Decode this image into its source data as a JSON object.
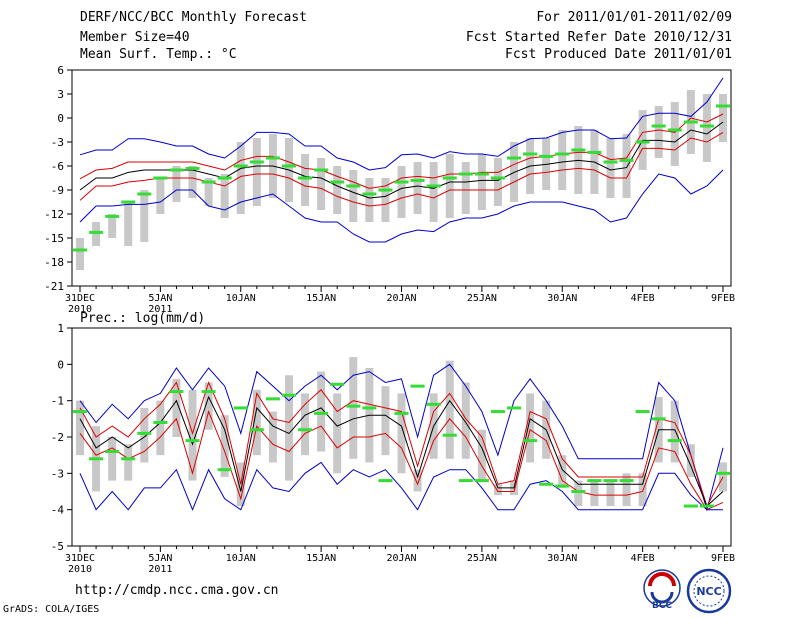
{
  "header": {
    "title": "DERF/NCC/BCC Monthly Forecast",
    "member": "Member Size=40",
    "variable": "Mean Surf. Temp.: °C",
    "period": "For 2011/01/01-2011/02/09",
    "started": "Fcst Started Refer Date 2010/12/31",
    "produced": "Fcst Produced Date 2011/01/01"
  },
  "footer": {
    "url": "http://cmdp.ncc.cma.gov.cn",
    "grads": "GrADS: COLA/IGES",
    "logo_bcc_text": "BCC",
    "logo_ncc_text": "NCC"
  },
  "colors": {
    "spread": "#0000cc",
    "member": "#dd0000",
    "mean": "#000000",
    "box": "#c8c8c8",
    "obs": "#33dd33"
  },
  "chart_data": [
    {
      "type": "line",
      "title": "Mean Surf. Temp.: °C",
      "ylabel": "°C",
      "ylim": [
        -21,
        6
      ],
      "yticks": [
        6,
        3,
        0,
        -3,
        -6,
        -9,
        -12,
        -15,
        -18,
        -21
      ],
      "x_start": 0,
      "x_tick_labels": [
        {
          "x": 0,
          "label": "31DEC",
          "sub": "2010"
        },
        {
          "x": 5,
          "label": "5JAN",
          "sub": "2011"
        },
        {
          "x": 10,
          "label": "10JAN",
          "sub": ""
        },
        {
          "x": 15,
          "label": "15JAN",
          "sub": ""
        },
        {
          "x": 20,
          "label": "20JAN",
          "sub": ""
        },
        {
          "x": 25,
          "label": "25JAN",
          "sub": ""
        },
        {
          "x": 30,
          "label": "30JAN",
          "sub": ""
        },
        {
          "x": 35,
          "label": "4FEB",
          "sub": ""
        },
        {
          "x": 40,
          "label": "9FEB",
          "sub": ""
        }
      ],
      "series": [
        {
          "name": "max",
          "role": "spread",
          "values": [
            -4.6,
            -4.0,
            -4.0,
            -2.6,
            -2.6,
            -3.0,
            -3.5,
            -3.5,
            -4.5,
            -5.0,
            -3.5,
            -1.8,
            -1.8,
            -2.0,
            -3.5,
            -3.5,
            -5.0,
            -5.5,
            -6.5,
            -6.2,
            -4.6,
            -4.5,
            -5.0,
            -4.2,
            -4.5,
            -4.5,
            -4.8,
            -3.5,
            -2.6,
            -2.5,
            -1.8,
            -1.5,
            -1.5,
            -2.6,
            -2.5,
            0.2,
            0.6,
            0.6,
            0.2,
            2.0,
            5.0
          ]
        },
        {
          "name": "upper",
          "role": "member",
          "values": [
            -7.6,
            -6.5,
            -6.3,
            -5.5,
            -5.5,
            -5.5,
            -5.5,
            -5.5,
            -6.0,
            -6.5,
            -5.3,
            -4.8,
            -4.8,
            -5.5,
            -6.3,
            -6.5,
            -7.3,
            -8.0,
            -8.8,
            -8.5,
            -7.5,
            -7.3,
            -7.5,
            -7.0,
            -7.0,
            -6.8,
            -6.8,
            -5.8,
            -5.0,
            -4.8,
            -4.5,
            -4.3,
            -4.3,
            -5.2,
            -5.0,
            -1.8,
            -1.5,
            -1.8,
            0.0,
            -0.5,
            0.5
          ]
        },
        {
          "name": "mean",
          "role": "mean",
          "values": [
            -9.0,
            -7.5,
            -7.5,
            -6.8,
            -6.5,
            -6.5,
            -6.5,
            -6.5,
            -7.0,
            -7.5,
            -6.3,
            -6.0,
            -6.0,
            -6.5,
            -7.3,
            -7.5,
            -8.5,
            -9.3,
            -10.0,
            -9.8,
            -8.8,
            -8.5,
            -8.8,
            -8.0,
            -8.0,
            -7.8,
            -7.8,
            -6.8,
            -6.0,
            -5.8,
            -5.5,
            -5.3,
            -5.5,
            -6.5,
            -6.2,
            -2.8,
            -2.8,
            -3.0,
            -1.5,
            -2.0,
            -0.5
          ]
        },
        {
          "name": "lower",
          "role": "member",
          "values": [
            -10.3,
            -8.5,
            -8.5,
            -8.0,
            -7.8,
            -7.5,
            -7.5,
            -7.5,
            -8.0,
            -8.5,
            -7.3,
            -7.0,
            -7.0,
            -7.5,
            -8.5,
            -8.8,
            -9.8,
            -10.5,
            -11.0,
            -10.8,
            -10.0,
            -9.5,
            -10.0,
            -9.0,
            -9.0,
            -9.0,
            -9.0,
            -8.0,
            -7.0,
            -6.8,
            -6.5,
            -6.3,
            -6.5,
            -7.5,
            -7.5,
            -3.8,
            -3.8,
            -4.0,
            -2.5,
            -3.0,
            -1.8
          ]
        },
        {
          "name": "min",
          "role": "spread",
          "values": [
            -13.0,
            -11.0,
            -11.0,
            -10.8,
            -10.8,
            -10.5,
            -9.0,
            -9.0,
            -11.0,
            -11.5,
            -10.5,
            -10.0,
            -9.5,
            -11.0,
            -12.5,
            -13.0,
            -13.0,
            -14.5,
            -15.5,
            -15.5,
            -14.5,
            -14.0,
            -14.2,
            -13.0,
            -12.5,
            -12.5,
            -12.0,
            -11.0,
            -10.5,
            -10.5,
            -10.5,
            -11.0,
            -11.5,
            -13.0,
            -12.5,
            -9.5,
            -7.0,
            -7.5,
            -9.5,
            -8.5,
            -6.5
          ]
        },
        {
          "name": "box_top",
          "role": "box",
          "values": [
            -15.0,
            -13.0,
            -12.0,
            -10.5,
            -9.0,
            -7.5,
            -6.0,
            -6.0,
            -7.5,
            -7.0,
            -3.0,
            -2.5,
            -2.0,
            -2.5,
            -4.5,
            -5.0,
            -6.0,
            -6.5,
            -7.5,
            -7.5,
            -6.0,
            -5.5,
            -5.5,
            -4.5,
            -5.5,
            -4.5,
            -5.0,
            -3.0,
            -2.5,
            -2.5,
            -1.5,
            -1.0,
            -1.5,
            -2.5,
            -2.0,
            1.0,
            1.5,
            2.0,
            3.5,
            3.0,
            3.0
          ]
        },
        {
          "name": "box_bottom",
          "role": "box",
          "values": [
            -19.0,
            -16.0,
            -15.0,
            -16.0,
            -15.5,
            -12.0,
            -10.5,
            -10.0,
            -11.0,
            -12.5,
            -12.0,
            -11.0,
            -10.0,
            -10.5,
            -11.0,
            -11.5,
            -12.0,
            -13.0,
            -13.0,
            -13.0,
            -12.5,
            -12.0,
            -13.0,
            -12.5,
            -12.0,
            -11.5,
            -11.0,
            -10.5,
            -9.5,
            -9.0,
            -9.0,
            -9.5,
            -9.5,
            -10.0,
            -10.0,
            -6.5,
            -5.0,
            -6.0,
            -4.5,
            -5.5,
            -3.0
          ]
        },
        {
          "name": "observed",
          "role": "obs",
          "values": [
            -16.5,
            -14.3,
            -12.3,
            -10.5,
            -9.5,
            -7.5,
            -6.5,
            -6.3,
            -8.0,
            -7.5,
            -6.0,
            -5.5,
            -5.0,
            -6.0,
            -7.5,
            -6.5,
            -8.0,
            -8.5,
            -9.5,
            -9.0,
            -8.0,
            -7.8,
            -8.5,
            -7.5,
            -7.0,
            -7.0,
            -7.5,
            -5.0,
            -4.5,
            -4.8,
            -4.5,
            -4.0,
            -4.3,
            -5.5,
            -5.3,
            -3.0,
            -1.0,
            -1.5,
            -0.5,
            -1.0,
            1.5
          ]
        }
      ]
    },
    {
      "type": "line",
      "title": "Prec.: log(mm/d)",
      "ylabel": "log(mm/d)",
      "ylim": [
        -5,
        1
      ],
      "yticks": [
        1,
        0,
        -1,
        -2,
        -3,
        -4,
        -5
      ],
      "x_start": 0,
      "x_tick_labels": [
        {
          "x": 0,
          "label": "31DEC",
          "sub": "2010"
        },
        {
          "x": 5,
          "label": "5JAN",
          "sub": "2011"
        },
        {
          "x": 10,
          "label": "10JAN",
          "sub": ""
        },
        {
          "x": 15,
          "label": "15JAN",
          "sub": ""
        },
        {
          "x": 20,
          "label": "20JAN",
          "sub": ""
        },
        {
          "x": 25,
          "label": "25JAN",
          "sub": ""
        },
        {
          "x": 30,
          "label": "30JAN",
          "sub": ""
        },
        {
          "x": 35,
          "label": "4FEB",
          "sub": ""
        },
        {
          "x": 40,
          "label": "9FEB",
          "sub": ""
        }
      ],
      "series": [
        {
          "name": "max",
          "role": "spread",
          "values": [
            -1.0,
            -1.6,
            -1.1,
            -1.5,
            -1.0,
            -0.8,
            -0.1,
            -0.7,
            -0.1,
            -0.6,
            -1.9,
            -0.2,
            -0.6,
            -1.0,
            -0.6,
            -0.3,
            -0.7,
            -0.3,
            -0.2,
            -0.5,
            -0.4,
            -2.0,
            -0.3,
            -0.0,
            -0.6,
            -1.3,
            -2.5,
            -1.0,
            -0.4,
            -1.0,
            -1.7,
            -2.6,
            -2.6,
            -2.6,
            -2.6,
            -2.6,
            -0.5,
            -1.0,
            -2.5,
            -4.0,
            -2.3
          ]
        },
        {
          "name": "upper",
          "role": "member",
          "values": [
            -1.2,
            -2.0,
            -1.7,
            -2.0,
            -1.5,
            -1.1,
            -0.5,
            -1.9,
            -0.5,
            -1.5,
            -3.3,
            -0.8,
            -1.5,
            -1.6,
            -1.1,
            -0.7,
            -1.3,
            -1.0,
            -1.1,
            -1.2,
            -1.3,
            -2.8,
            -1.3,
            -0.8,
            -1.5,
            -2.0,
            -3.3,
            -3.2,
            -1.3,
            -1.5,
            -2.6,
            -3.1,
            -3.1,
            -3.1,
            -3.1,
            -3.1,
            -1.5,
            -1.6,
            -2.5,
            -3.9,
            -3.1
          ]
        },
        {
          "name": "mean",
          "role": "mean",
          "values": [
            -1.5,
            -2.3,
            -2.0,
            -2.3,
            -2.0,
            -1.6,
            -1.0,
            -2.2,
            -0.9,
            -1.8,
            -3.5,
            -1.2,
            -1.7,
            -1.9,
            -1.4,
            -1.2,
            -1.7,
            -1.5,
            -1.4,
            -1.4,
            -1.7,
            -3.1,
            -1.7,
            -1.0,
            -1.6,
            -2.3,
            -3.4,
            -3.4,
            -1.5,
            -1.8,
            -2.9,
            -3.3,
            -3.3,
            -3.3,
            -3.3,
            -3.3,
            -1.8,
            -1.8,
            -2.8,
            -3.9,
            -3.5
          ]
        },
        {
          "name": "lower",
          "role": "member",
          "values": [
            -1.9,
            -2.5,
            -2.3,
            -2.6,
            -2.4,
            -2.0,
            -1.5,
            -3.0,
            -1.3,
            -2.4,
            -3.7,
            -1.7,
            -2.2,
            -2.4,
            -1.9,
            -1.7,
            -2.3,
            -2.0,
            -2.0,
            -1.9,
            -2.3,
            -3.3,
            -2.1,
            -1.5,
            -2.0,
            -2.8,
            -3.5,
            -3.5,
            -1.8,
            -2.1,
            -3.2,
            -3.5,
            -3.6,
            -3.6,
            -3.6,
            -3.5,
            -2.3,
            -2.4,
            -3.3,
            -4.0,
            -3.8
          ]
        },
        {
          "name": "min",
          "role": "spread",
          "values": [
            -3.0,
            -4.0,
            -3.5,
            -4.0,
            -3.4,
            -3.4,
            -2.9,
            -4.0,
            -2.9,
            -3.7,
            -4.0,
            -2.9,
            -3.4,
            -3.5,
            -3.0,
            -2.7,
            -3.3,
            -2.9,
            -3.1,
            -2.9,
            -3.4,
            -4.0,
            -3.1,
            -2.9,
            -2.9,
            -3.4,
            -4.0,
            -4.0,
            -3.3,
            -3.2,
            -3.5,
            -4.0,
            -4.0,
            -4.0,
            -4.0,
            -4.0,
            -3.0,
            -3.0,
            -3.6,
            -4.0,
            -4.0
          ]
        },
        {
          "name": "box_top",
          "role": "box",
          "values": [
            -1.0,
            -1.7,
            -2.0,
            -2.2,
            -1.2,
            -1.0,
            -0.4,
            -0.7,
            -0.5,
            -1.4,
            -2.7,
            -0.7,
            -1.3,
            -0.3,
            -0.8,
            -0.2,
            -0.8,
            0.2,
            -0.1,
            -0.6,
            -0.8,
            -2.9,
            -0.8,
            0.1,
            -0.5,
            -1.8,
            -3.3,
            -3.2,
            -0.8,
            -1.0,
            -2.5,
            -3.2,
            -3.2,
            -3.2,
            -3.0,
            -3.0,
            -0.9,
            -1.0,
            -2.2,
            -3.9,
            -2.7
          ]
        },
        {
          "name": "box_bottom",
          "role": "box",
          "values": [
            -2.5,
            -3.5,
            -3.2,
            -3.2,
            -2.7,
            -2.5,
            -2.0,
            -3.2,
            -1.8,
            -3.1,
            -3.9,
            -2.5,
            -2.7,
            -3.2,
            -2.5,
            -2.4,
            -3.0,
            -2.6,
            -2.7,
            -2.5,
            -3.0,
            -3.5,
            -2.6,
            -2.6,
            -2.6,
            -3.2,
            -3.6,
            -3.6,
            -2.7,
            -2.6,
            -3.4,
            -3.9,
            -3.9,
            -3.9,
            -3.9,
            -3.9,
            -2.7,
            -2.7,
            -3.1,
            -3.9,
            -3.5
          ]
        },
        {
          "name": "observed",
          "role": "obs",
          "values": [
            -1.3,
            -2.6,
            -2.4,
            -2.6,
            -1.9,
            -1.6,
            -0.75,
            -2.1,
            -0.75,
            -2.9,
            -1.2,
            -1.8,
            -0.95,
            -0.85,
            -1.8,
            -1.35,
            -0.55,
            -1.15,
            -1.2,
            -3.2,
            -1.35,
            -0.6,
            -1.1,
            -1.95,
            -3.2,
            -3.2,
            -1.3,
            -1.2,
            -2.1,
            -3.3,
            -3.35,
            -3.5,
            -3.2,
            -3.2,
            -3.2,
            -1.3,
            -1.5,
            -2.1,
            -3.9,
            -3.9,
            -3.0
          ]
        }
      ]
    }
  ]
}
